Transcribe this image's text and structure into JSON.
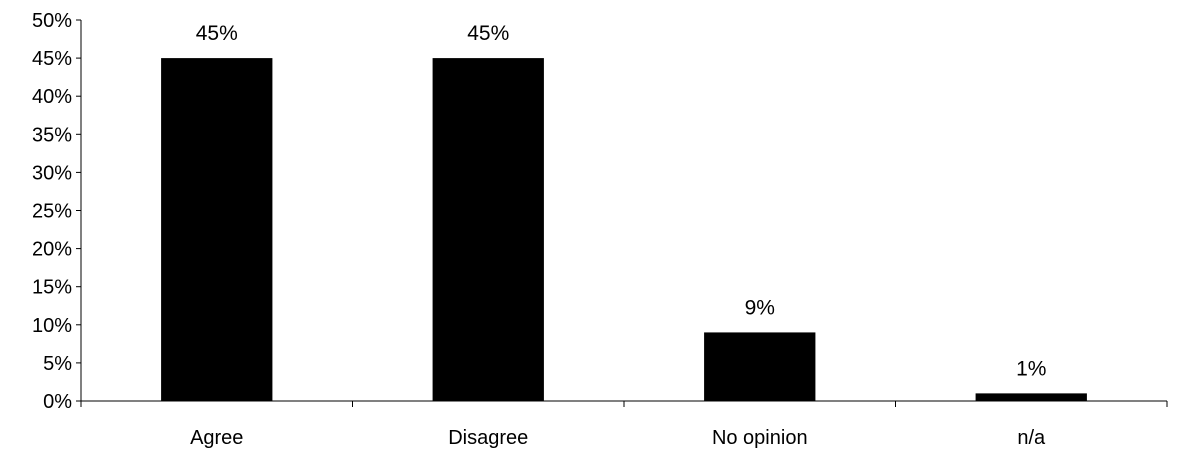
{
  "chart_data": {
    "type": "bar",
    "categories": [
      "Agree",
      "Disagree",
      "No opinion",
      "n/a"
    ],
    "values": [
      45,
      45,
      9,
      1
    ],
    "data_labels": [
      "45%",
      "45%",
      "9%",
      "1%"
    ],
    "title": "",
    "xlabel": "",
    "ylabel": "",
    "ylim": [
      0,
      50
    ],
    "yticks": [
      0,
      5,
      10,
      15,
      20,
      25,
      30,
      35,
      40,
      45,
      50
    ],
    "ytick_labels": [
      "0%",
      "5%",
      "10%",
      "15%",
      "20%",
      "25%",
      "30%",
      "35%",
      "40%",
      "45%",
      "50%"
    ],
    "grid": false,
    "legend": "none",
    "bar_color": "#000000",
    "axis_color": "#000000"
  }
}
